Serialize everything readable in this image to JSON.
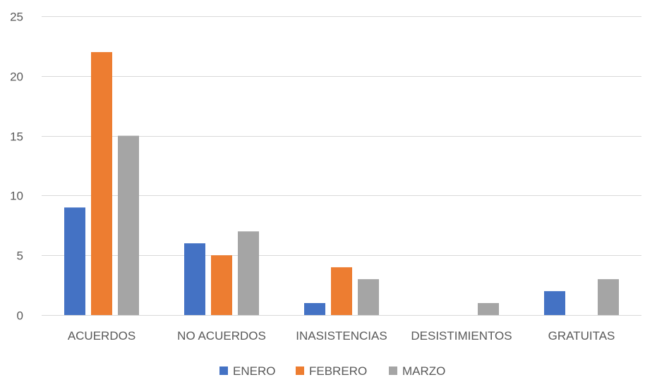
{
  "chart_data": {
    "type": "bar",
    "categories": [
      "ACUERDOS",
      "NO ACUERDOS",
      "INASISTENCIAS",
      "DESISTIMIENTOS",
      "GRATUITAS"
    ],
    "series": [
      {
        "name": "ENERO",
        "color": "#4472c4",
        "values": [
          9,
          6,
          1,
          0,
          2
        ]
      },
      {
        "name": "FEBRERO",
        "color": "#ed7d31",
        "values": [
          22,
          5,
          4,
          0,
          0
        ]
      },
      {
        "name": "MARZO",
        "color": "#a5a5a5",
        "values": [
          15,
          7,
          3,
          1,
          3
        ]
      }
    ],
    "ylim": [
      0,
      25
    ],
    "yticks": [
      0,
      5,
      10,
      15,
      20,
      25
    ],
    "grid": true,
    "legend_position": "bottom"
  }
}
